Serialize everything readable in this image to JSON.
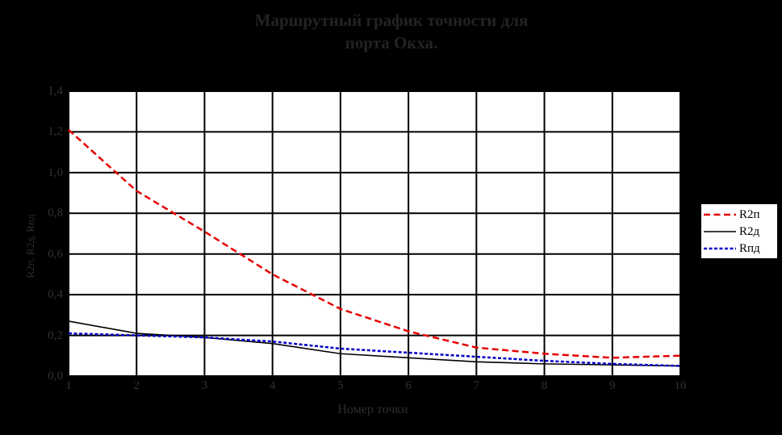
{
  "title": {
    "line1": "Маршрутный график точности для",
    "line2": "порта Окха."
  },
  "colors": {
    "page_background": "#000000",
    "plot_background": "#ffffff",
    "grid": "#000000",
    "faint_text": "#323232",
    "series_r2p": "#e60000",
    "series_r2d": "#000000",
    "series_rpd": "#0000cc"
  },
  "chart_data": {
    "type": "line",
    "title": "Маршрутный график точности для порта Окха.",
    "xlabel": "Номер точки",
    "ylabel": "R2п, R2д, Rпд",
    "xlim": [
      1,
      10
    ],
    "ylim": [
      0,
      1.4
    ],
    "grid": true,
    "legend_position": "right",
    "x": [
      1,
      2,
      3,
      4,
      5,
      6,
      7,
      8,
      9,
      10
    ],
    "x_tick_labels": [
      "1",
      "2",
      "3",
      "4",
      "5",
      "6",
      "7",
      "8",
      "9",
      "10"
    ],
    "y_ticks": [
      0,
      0.2,
      0.4,
      0.6,
      0.8,
      1.0,
      1.2,
      1.4
    ],
    "y_tick_labels": [
      "0,0",
      "0,2",
      "0,4",
      "0,6",
      "0,8",
      "1,0",
      "1,2",
      "1,4"
    ],
    "series": [
      {
        "name": "R2п",
        "color": "#e60000",
        "style": "dashed",
        "width": 2.5,
        "values": [
          1.21,
          0.91,
          0.71,
          0.5,
          0.33,
          0.22,
          0.14,
          0.11,
          0.09,
          0.1
        ]
      },
      {
        "name": "R2д",
        "color": "#000000",
        "style": "solid",
        "width": 1.6,
        "values": [
          0.27,
          0.21,
          0.19,
          0.16,
          0.11,
          0.09,
          0.07,
          0.06,
          0.055,
          0.05
        ]
      },
      {
        "name": "Rпд",
        "color": "#0000cc",
        "style": "dotted",
        "width": 2.5,
        "values": [
          0.21,
          0.2,
          0.19,
          0.17,
          0.135,
          0.115,
          0.095,
          0.075,
          0.06,
          0.05
        ]
      }
    ]
  }
}
